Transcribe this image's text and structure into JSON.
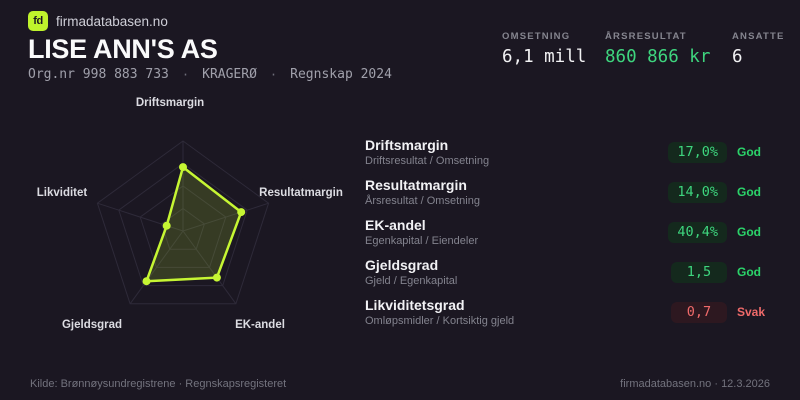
{
  "brand": {
    "logo": "fd",
    "name": "firmadatabasen.no"
  },
  "header": {
    "company": "LISE ANN'S AS",
    "org": "Org.nr 998 883 733",
    "location": "KRAGERØ",
    "report": "Regnskap 2024",
    "separator": "·"
  },
  "stats": [
    {
      "label": "OMSETNING",
      "value": "6,1 mill"
    },
    {
      "label": "ÅRSRESULTAT",
      "value": "860 866 kr"
    },
    {
      "label": "ANSATTE",
      "value": "6"
    }
  ],
  "chart_data": {
    "type": "radar",
    "axes": [
      "Driftsmargin",
      "Resultatmargin",
      "EK-andel",
      "Gjeldsgrad",
      "Likviditet"
    ],
    "values_normalized": [
      0.71,
      0.68,
      0.64,
      0.69,
      0.19
    ],
    "actual_values": [
      "17,0%",
      "14,0%",
      "40,4%",
      "1,5",
      "0,7"
    ],
    "rings": [
      0.25,
      0.5,
      0.75,
      1.0
    ],
    "max": 1,
    "legend_position": "none",
    "grid": true,
    "stroke_color": "#c6f633",
    "fill_color": "rgba(198,246,51,0.16)",
    "grid_color": "#2e2a39",
    "point_radius": 4
  },
  "metrics": {
    "rows": [
      {
        "name": "Driftsmargin",
        "formula": "Driftsresultat / Omsetning",
        "value": "17,0%",
        "rating": "God",
        "status": "god"
      },
      {
        "name": "Resultatmargin",
        "formula": "Årsresultat / Omsetning",
        "value": "14,0%",
        "rating": "God",
        "status": "god"
      },
      {
        "name": "EK-andel",
        "formula": "Egenkapital / Eiendeler",
        "value": "40,4%",
        "rating": "God",
        "status": "god"
      },
      {
        "name": "Gjeldsgrad",
        "formula": "Gjeld / Egenkapital",
        "value": "1,5",
        "rating": "God",
        "status": "god"
      },
      {
        "name": "Likviditetsgrad",
        "formula": "Omløpsmidler / Kortsiktig gjeld",
        "value": "0,7",
        "rating": "Svak",
        "status": "svak"
      }
    ]
  },
  "footer": {
    "source": "Kilde: Brønnøysundregistrene · Regnskapsregisteret",
    "site": "firmadatabasen.no · 12.3.2026"
  },
  "colors": {
    "background": "#1b1722",
    "accent_lime": "#bff32c",
    "value_green": "#3ed57e",
    "rating_good": "#2bd36a",
    "rating_weak": "#ef6a6a",
    "pill_green_bg": "#14291d",
    "pill_red_bg": "#2d1820"
  }
}
